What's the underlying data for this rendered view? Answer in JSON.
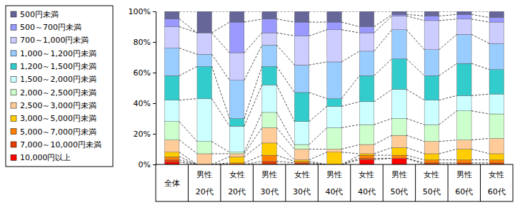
{
  "chart_data": {
    "type": "bar",
    "stacked": true,
    "grid": false,
    "legend": "left",
    "categories": [
      "全体",
      "男性\n20代",
      "女性\n20代",
      "男性\n30代",
      "女性\n30代",
      "男性\n40代",
      "女性\n40代",
      "男性\n50代",
      "女性\n50代",
      "男性\n60代",
      "女性\n60代"
    ],
    "ylim": [
      0,
      100
    ],
    "yticks": [
      {
        "value": 0,
        "label": "0%"
      },
      {
        "value": 20,
        "label": "20%"
      },
      {
        "value": 40,
        "label": "40%"
      },
      {
        "value": 60,
        "label": "60%"
      },
      {
        "value": 80,
        "label": "80%"
      },
      {
        "value": 100,
        "label": "100%"
      }
    ],
    "series": [
      {
        "name": "500円未満",
        "color": "#666699",
        "values": [
          5,
          14,
          7,
          5,
          7,
          7,
          10,
          2,
          3,
          2,
          4
        ]
      },
      {
        "name": "500～700円未満",
        "color": "#9999FF",
        "values": [
          5,
          0,
          20,
          9,
          9,
          5,
          4,
          1,
          3,
          3,
          3
        ]
      },
      {
        "name": "700～1,000円未満",
        "color": "#CCCCFF",
        "values": [
          14,
          14,
          18,
          8,
          19,
          21,
          12,
          9,
          19,
          10,
          14
        ]
      },
      {
        "name": "1,000～1,200円未満",
        "color": "#99CCFF",
        "values": [
          18,
          8,
          25,
          14,
          18,
          24,
          16,
          19,
          17,
          19,
          17
        ]
      },
      {
        "name": "1,200～1,500円未満",
        "color": "#33CCCC",
        "values": [
          16,
          21,
          5,
          12,
          19,
          5,
          17,
          20,
          16,
          21,
          16
        ]
      },
      {
        "name": "1,500～2,000円未満",
        "color": "#CCFFFF",
        "values": [
          14,
          28,
          17,
          18,
          15,
          14,
          15,
          19,
          16,
          10,
          13
        ]
      },
      {
        "name": "2,000～2,500円未満",
        "color": "#CCFFCC",
        "values": [
          12,
          8,
          1,
          10,
          3,
          14,
          13,
          11,
          11,
          19,
          16
        ]
      },
      {
        "name": "2,500～3,000円未満",
        "color": "#FFCC99",
        "values": [
          8,
          7,
          2,
          10,
          7,
          2,
          6,
          8,
          8,
          6,
          10
        ]
      },
      {
        "name": "3,000～5,000円未満",
        "color": "#FFCC00",
        "values": [
          3,
          0,
          4,
          8,
          1,
          8,
          1,
          5,
          4,
          7,
          4
        ]
      },
      {
        "name": "5,000～7,000円未満",
        "color": "#FF8000",
        "values": [
          2,
          0,
          1,
          4,
          1,
          0,
          2,
          2,
          2,
          2,
          2
        ]
      },
      {
        "name": "7,000～10,000円未満",
        "color": "#E53C00",
        "values": [
          1.5,
          0,
          0,
          2,
          1,
          0,
          1,
          0,
          1,
          1,
          1
        ]
      },
      {
        "name": "10,000円以上",
        "color": "#FF0000",
        "values": [
          1.5,
          0,
          0,
          0,
          0,
          0,
          3,
          4,
          0,
          0,
          0
        ]
      }
    ]
  }
}
